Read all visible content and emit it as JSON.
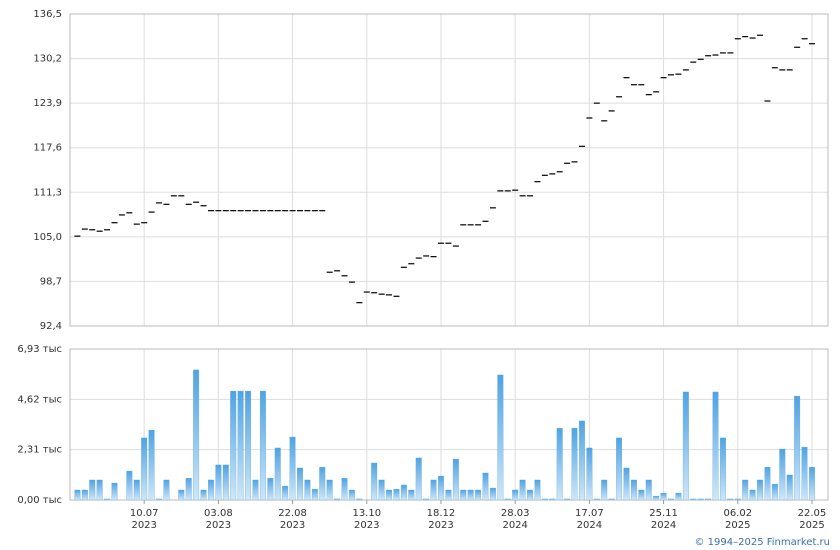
{
  "chart_data": [
    {
      "type": "marker",
      "color": "#000000",
      "grid": true,
      "ylim": [
        92.4,
        136.5
      ],
      "yticks": [
        {
          "value": 92.4,
          "label": "92,4"
        },
        {
          "value": 98.7,
          "label": "98,7"
        },
        {
          "value": 105.0,
          "label": "105,0"
        },
        {
          "value": 111.3,
          "label": "111,3"
        },
        {
          "value": 117.6,
          "label": "117,6"
        },
        {
          "value": 123.9,
          "label": "123,9"
        },
        {
          "value": 130.2,
          "label": "130,2"
        },
        {
          "value": 136.5,
          "label": "136,5"
        }
      ],
      "values": [
        105.1,
        106.1,
        106.0,
        105.8,
        106.0,
        107.0,
        108.1,
        108.4,
        106.8,
        107.0,
        108.5,
        109.8,
        109.6,
        110.8,
        110.8,
        109.6,
        109.9,
        109.4,
        108.7,
        108.7,
        108.7,
        108.7,
        108.7,
        108.7,
        108.7,
        108.7,
        108.7,
        108.7,
        108.7,
        108.7,
        108.7,
        108.7,
        108.7,
        108.7,
        100.0,
        100.2,
        99.5,
        98.6,
        95.7,
        97.2,
        97.1,
        96.9,
        96.8,
        96.6,
        100.7,
        101.2,
        102.0,
        102.3,
        102.2,
        104.1,
        104.1,
        103.7,
        106.7,
        106.7,
        106.7,
        107.2,
        109.1,
        111.5,
        111.5,
        111.6,
        110.8,
        110.8,
        112.8,
        113.7,
        113.9,
        114.2,
        115.4,
        115.6,
        117.8,
        121.8,
        123.9,
        121.4,
        122.8,
        124.8,
        127.5,
        126.5,
        126.5,
        125.1,
        125.5,
        127.5,
        127.9,
        128.0,
        128.6,
        129.7,
        130.1,
        130.6,
        130.7,
        131.0,
        131.0,
        133.0,
        133.3,
        133.1,
        133.5,
        124.2,
        128.9,
        128.6,
        128.6,
        131.8,
        133.0,
        132.3
      ]
    },
    {
      "type": "bar",
      "color": "#5aa9e6",
      "grid": true,
      "ylim": [
        0,
        6.93
      ],
      "yticks": [
        {
          "value": 0,
          "label": "0,00 тыс"
        },
        {
          "value": 2.31,
          "label": "2,31 тыс"
        },
        {
          "value": 4.62,
          "label": "4,62 тыс"
        },
        {
          "value": 6.93,
          "label": "6,93 тыс"
        }
      ],
      "categories": [
        null,
        null,
        null,
        null,
        null,
        null,
        null,
        null,
        null,
        [
          "10.07",
          "2023"
        ],
        null,
        null,
        null,
        null,
        null,
        null,
        null,
        null,
        null,
        [
          "03.08",
          "2023"
        ],
        null,
        null,
        null,
        null,
        null,
        null,
        null,
        null,
        null,
        [
          "22.08",
          "2023"
        ],
        null,
        null,
        null,
        null,
        null,
        null,
        null,
        null,
        null,
        [
          "13.10",
          "2023"
        ],
        null,
        null,
        null,
        null,
        null,
        null,
        null,
        null,
        null,
        [
          "18.12",
          "2023"
        ],
        null,
        null,
        null,
        null,
        null,
        null,
        null,
        null,
        null,
        [
          "28.03",
          "2024"
        ],
        null,
        null,
        null,
        null,
        null,
        null,
        null,
        null,
        null,
        [
          "17.07",
          "2024"
        ],
        null,
        null,
        null,
        null,
        null,
        null,
        null,
        null,
        null,
        [
          "25.11",
          "2024"
        ],
        null,
        null,
        null,
        null,
        null,
        null,
        null,
        null,
        null,
        [
          "06.02",
          "2025"
        ],
        null,
        null,
        null,
        null,
        null,
        null,
        null,
        null,
        null,
        [
          "22.05",
          "2025"
        ]
      ],
      "values": [
        0.46,
        0.46,
        0.92,
        0.92,
        0.05,
        0.78,
        0,
        1.33,
        0.92,
        2.85,
        3.21,
        0.05,
        0.92,
        0,
        0.46,
        1.0,
        5.97,
        0.46,
        0.92,
        1.61,
        1.61,
        5.0,
        5.0,
        5.0,
        0.92,
        5.0,
        1.0,
        2.39,
        0.64,
        2.89,
        1.47,
        0.92,
        0.5,
        1.51,
        0.92,
        0.05,
        1.0,
        0.46,
        0.05,
        0,
        1.7,
        0.92,
        0.46,
        0.5,
        0.69,
        0.46,
        1.93,
        0.05,
        0.92,
        1.1,
        0.46,
        1.88,
        0.46,
        0.46,
        0.46,
        1.24,
        0.55,
        5.74,
        0.05,
        0.46,
        0.92,
        0.46,
        0.92,
        0.05,
        0.05,
        3.3,
        0.05,
        3.3,
        3.63,
        2.39,
        0.05,
        0.92,
        0.05,
        2.85,
        1.47,
        0.92,
        0.46,
        0.92,
        0.18,
        0.32,
        0.05,
        0.32,
        4.96,
        0.05,
        0.05,
        0.05,
        4.96,
        2.85,
        0.05,
        0.05,
        0.92,
        0.46,
        0.92,
        1.51,
        0.73,
        2.34,
        1.15,
        4.77,
        2.43,
        1.51
      ]
    }
  ],
  "footer": "© 1994–2025 Finmarket.ru"
}
